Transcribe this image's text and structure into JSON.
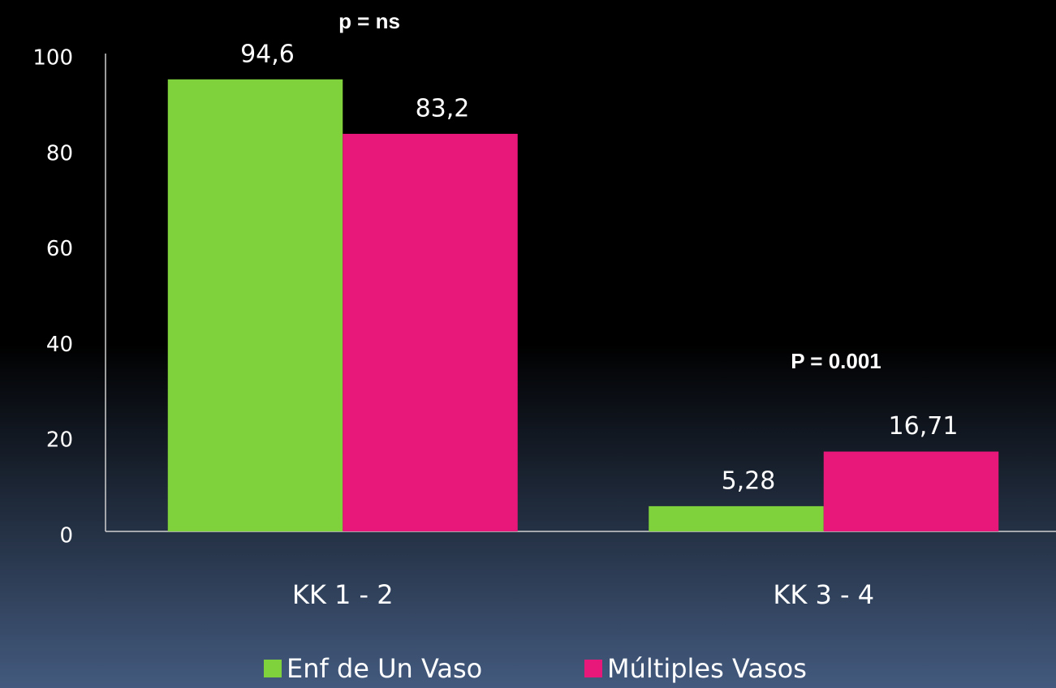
{
  "chart_data": {
    "type": "bar",
    "categories": [
      "KK 1 - 2",
      "KK 3 - 4"
    ],
    "series": [
      {
        "name": "Enf de Un Vaso",
        "color": "#80d23c",
        "values": [
          94.6,
          5.28
        ],
        "value_labels": [
          "94,6",
          "5,28"
        ]
      },
      {
        "name": "Múltiples Vasos",
        "color": "#e8177a",
        "values": [
          83.2,
          16.71
        ],
        "value_labels": [
          "83,2",
          "16,71"
        ]
      }
    ],
    "ylim": [
      0,
      100
    ],
    "yticks": [
      0,
      20,
      40,
      60,
      80,
      100
    ],
    "annotations": [
      "p =  ns",
      "P =   0.001"
    ],
    "grid": false
  }
}
